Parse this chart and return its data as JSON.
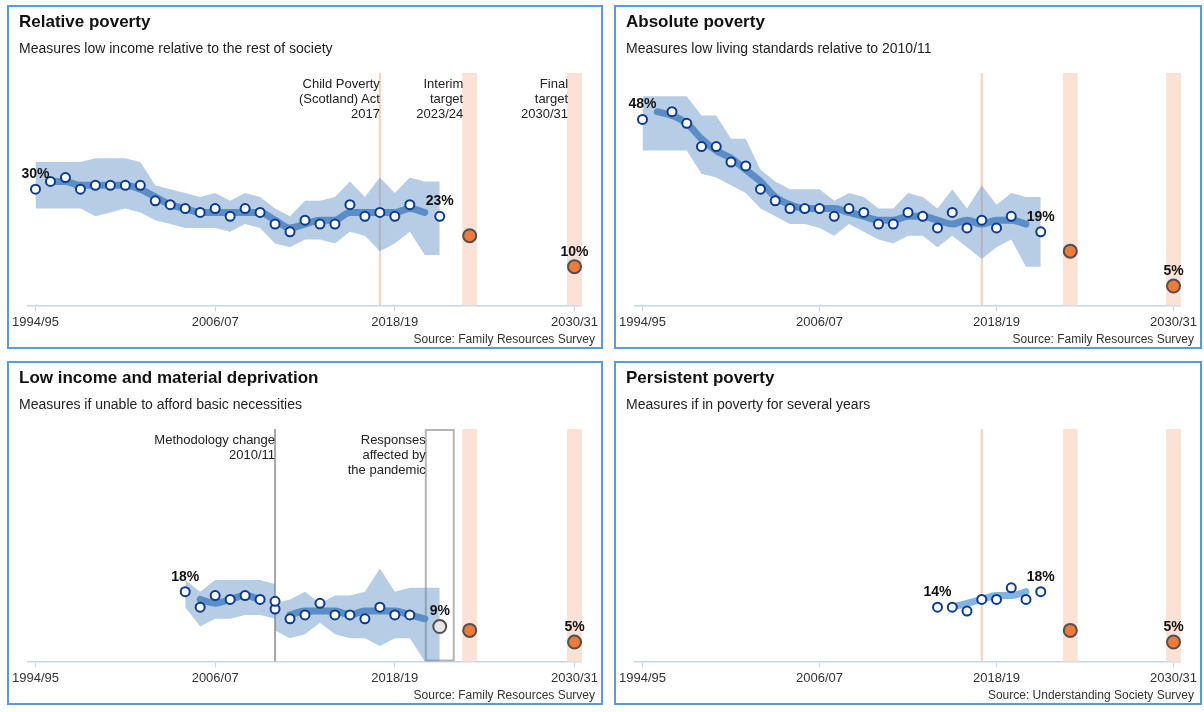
{
  "chart_data": [
    {
      "type": "line",
      "title": "Relative poverty",
      "subtitle": "Measures low income relative to the rest of society",
      "categories": [
        "1994/95",
        null,
        null,
        null,
        null,
        null,
        null,
        null,
        null,
        null,
        null,
        null,
        "2006/07",
        null,
        null,
        null,
        null,
        null,
        null,
        null,
        null,
        null,
        null,
        null,
        "2018/19",
        null,
        null,
        null,
        null,
        null,
        null,
        null,
        null,
        null,
        null,
        null,
        "2030/31"
      ],
      "ylim": [
        0,
        60
      ],
      "tick_labels": "x",
      "annotations": [
        "Child Poverty\n(Scotland) Act\n2017",
        "Interim\ntarget\n2023/24",
        "Final\ntarget\n2030/31",
        "Source: Family Resources Survey"
      ],
      "series": [
        {
          "type": "line",
          "color": "#5b8ec6",
          "values": [
            null,
            32,
            32,
            31,
            31,
            31,
            31,
            30,
            28,
            26,
            25,
            24,
            24,
            24,
            24,
            24,
            22,
            20,
            21,
            22,
            22,
            24,
            24,
            24,
            24,
            25,
            24,
            null,
            null,
            null,
            null,
            null,
            null,
            null,
            null,
            null,
            null
          ],
          "lower": [
            25,
            25,
            25,
            25,
            23,
            24,
            25,
            24,
            22,
            21,
            20,
            20,
            20,
            19,
            21,
            20,
            16,
            15,
            17,
            17,
            16,
            19,
            18,
            14,
            16,
            19,
            13,
            13,
            null,
            null,
            null,
            null,
            null,
            null,
            null,
            null,
            null
          ],
          "upper": [
            37,
            37,
            37,
            37,
            38,
            38,
            38,
            37,
            31,
            30,
            29,
            28,
            29,
            27,
            29,
            28,
            25,
            23,
            27,
            27,
            28,
            32,
            28,
            33,
            29,
            33,
            32,
            32,
            null,
            null,
            null,
            null,
            null,
            null,
            null,
            null,
            null
          ]
        },
        {
          "type": "scatter",
          "color": "#ffffff",
          "marker": "circle",
          "values": [
            30,
            32,
            33,
            30,
            31,
            31,
            31,
            31,
            27,
            26,
            25,
            24,
            25,
            23,
            25,
            24,
            21,
            19,
            22,
            21,
            21,
            26,
            23,
            24,
            23,
            26,
            null,
            23,
            null,
            null,
            null,
            null,
            null,
            null,
            null,
            null,
            null
          ],
          "value_labels": [
            "30%",
            null,
            null,
            null,
            null,
            null,
            null,
            null,
            null,
            null,
            null,
            null,
            null,
            null,
            null,
            null,
            null,
            null,
            null,
            null,
            null,
            null,
            null,
            null,
            null,
            null,
            null,
            "23%",
            null,
            null,
            null,
            null,
            null,
            null,
            null,
            null,
            null
          ]
        },
        {
          "type": "scatter",
          "color": "#f07a3a",
          "marker": "circle",
          "values": [
            null,
            null,
            null,
            null,
            null,
            null,
            null,
            null,
            null,
            null,
            null,
            null,
            null,
            null,
            null,
            null,
            null,
            null,
            null,
            null,
            null,
            null,
            null,
            null,
            null,
            null,
            null,
            null,
            null,
            18,
            null,
            null,
            null,
            null,
            null,
            null,
            10
          ],
          "value_labels": [
            null,
            null,
            null,
            null,
            null,
            null,
            null,
            null,
            null,
            null,
            null,
            null,
            null,
            null,
            null,
            null,
            null,
            null,
            null,
            null,
            null,
            null,
            null,
            null,
            null,
            null,
            null,
            null,
            null,
            null,
            null,
            null,
            null,
            null,
            null,
            null,
            "10%"
          ]
        }
      ]
    },
    {
      "type": "line",
      "title": "Absolute poverty",
      "subtitle": "Measures low living standards relative to 2010/11",
      "categories": [
        "1994/95",
        null,
        null,
        null,
        null,
        null,
        null,
        null,
        null,
        null,
        null,
        null,
        "2006/07",
        null,
        null,
        null,
        null,
        null,
        null,
        null,
        null,
        null,
        null,
        null,
        "2018/19",
        null,
        null,
        null,
        null,
        null,
        null,
        null,
        null,
        null,
        null,
        null,
        "2030/31"
      ],
      "ylim": [
        0,
        60
      ],
      "tick_labels": "x",
      "annotations": [
        "Source: Family Resources Survey"
      ],
      "series": [
        {
          "type": "line",
          "color": "#5b8ec6",
          "values": [
            null,
            50,
            49,
            47,
            43,
            40,
            38,
            35,
            32,
            28,
            26,
            25,
            25,
            25,
            24,
            23,
            22,
            22,
            23,
            23,
            22,
            21,
            22,
            21,
            22,
            22,
            21,
            null,
            null,
            null,
            null,
            null,
            null,
            null,
            null,
            null,
            null
          ],
          "lower": [
            40,
            40,
            40,
            40,
            34,
            33,
            31,
            29,
            25,
            23,
            21,
            21,
            20,
            18,
            21,
            19,
            17,
            16,
            18,
            18,
            15,
            18,
            15,
            12,
            15,
            17,
            10,
            10,
            null,
            null,
            null,
            null,
            null,
            null,
            null,
            null,
            null
          ],
          "upper": [
            54,
            54,
            54,
            54,
            49,
            49,
            43,
            43,
            35,
            32,
            30,
            30,
            30,
            27,
            29,
            28,
            25,
            25,
            29,
            28,
            25,
            30,
            25,
            31,
            26,
            29,
            28,
            28,
            null,
            null,
            null,
            null,
            null,
            null,
            null,
            null,
            null
          ]
        },
        {
          "type": "scatter",
          "color": "#ffffff",
          "marker": "circle",
          "values": [
            48,
            null,
            50,
            47,
            41,
            41,
            37,
            36,
            30,
            27,
            25,
            25,
            25,
            23,
            25,
            24,
            21,
            21,
            24,
            23,
            20,
            24,
            20,
            22,
            20,
            23,
            null,
            19,
            null,
            null,
            null,
            null,
            null,
            null,
            null,
            null,
            null
          ],
          "value_labels": [
            "48%",
            null,
            null,
            null,
            null,
            null,
            null,
            null,
            null,
            null,
            null,
            null,
            null,
            null,
            null,
            null,
            null,
            null,
            null,
            null,
            null,
            null,
            null,
            null,
            null,
            null,
            null,
            "19%",
            null,
            null,
            null,
            null,
            null,
            null,
            null,
            null,
            null
          ]
        },
        {
          "type": "scatter",
          "color": "#f07a3a",
          "marker": "circle",
          "values": [
            null,
            null,
            null,
            null,
            null,
            null,
            null,
            null,
            null,
            null,
            null,
            null,
            null,
            null,
            null,
            null,
            null,
            null,
            null,
            null,
            null,
            null,
            null,
            null,
            null,
            null,
            null,
            null,
            null,
            14,
            null,
            null,
            null,
            null,
            null,
            null,
            5
          ],
          "value_labels": [
            null,
            null,
            null,
            null,
            null,
            null,
            null,
            null,
            null,
            null,
            null,
            null,
            null,
            null,
            null,
            null,
            null,
            null,
            null,
            null,
            null,
            null,
            null,
            null,
            null,
            null,
            null,
            null,
            null,
            null,
            null,
            null,
            null,
            null,
            null,
            null,
            "5%"
          ]
        }
      ]
    },
    {
      "type": "line",
      "title": "Low income and material deprivation",
      "subtitle": "Measures if unable to afford basic necessities",
      "categories": [
        "1994/95",
        null,
        null,
        null,
        null,
        null,
        null,
        null,
        null,
        null,
        null,
        null,
        "2006/07",
        null,
        null,
        null,
        null,
        null,
        null,
        null,
        null,
        null,
        null,
        null,
        "2018/19",
        null,
        null,
        null,
        null,
        null,
        null,
        null,
        null,
        null,
        null,
        null,
        "2030/31"
      ],
      "ylim": [
        0,
        60
      ],
      "tick_labels": "x",
      "annotations": [
        "Methodology change\n2010/11",
        "Responses\naffected by\nthe pandemic",
        "Source: Family Resources Survey"
      ],
      "series": [
        {
          "type": "line",
          "color": "#5b8ec6",
          "values": [
            null,
            null,
            null,
            null,
            null,
            null,
            null,
            null,
            null,
            null,
            null,
            16,
            15,
            16,
            17,
            16,
            null,
            null,
            null,
            null,
            null,
            null,
            null,
            null,
            null,
            null,
            null,
            null,
            null,
            null,
            null,
            null,
            null,
            null,
            null,
            null,
            null
          ],
          "lower": [
            null,
            null,
            null,
            null,
            null,
            null,
            null,
            null,
            null,
            null,
            14,
            9,
            11,
            11,
            12,
            12,
            11,
            null,
            null,
            null,
            null,
            null,
            null,
            null,
            null,
            null,
            null,
            null,
            null,
            null,
            null,
            null,
            null,
            null,
            null,
            null,
            null
          ],
          "upper": [
            null,
            null,
            null,
            null,
            null,
            null,
            null,
            null,
            null,
            null,
            21,
            18,
            21,
            21,
            21,
            21,
            20,
            null,
            null,
            null,
            null,
            null,
            null,
            null,
            null,
            null,
            null,
            null,
            null,
            null,
            null,
            null,
            null,
            null,
            null,
            null,
            null
          ]
        },
        {
          "type": "line",
          "color": "#5b8ec6",
          "values": [
            null,
            null,
            null,
            null,
            null,
            null,
            null,
            null,
            null,
            null,
            null,
            null,
            null,
            null,
            null,
            null,
            null,
            12,
            13,
            13,
            13,
            12,
            13,
            13,
            13,
            12,
            11,
            null,
            null,
            null,
            null,
            null,
            null,
            null,
            null,
            null,
            null
          ],
          "lower": [
            null,
            null,
            null,
            null,
            null,
            null,
            null,
            null,
            null,
            null,
            null,
            null,
            null,
            null,
            null,
            null,
            8,
            6,
            7,
            10,
            7,
            6,
            6,
            4,
            6,
            6,
            0,
            0,
            null,
            null,
            null,
            null,
            null,
            null,
            null,
            null,
            null
          ],
          "upper": [
            null,
            null,
            null,
            null,
            null,
            null,
            null,
            null,
            null,
            null,
            null,
            null,
            null,
            null,
            null,
            null,
            15,
            16,
            18,
            15,
            17,
            17,
            18,
            24,
            18,
            19,
            19,
            19,
            null,
            null,
            null,
            null,
            null,
            null,
            null,
            null,
            null
          ]
        },
        {
          "type": "scatter",
          "color": "#ffffff",
          "marker": "circle",
          "values": [
            null,
            null,
            null,
            null,
            null,
            null,
            null,
            null,
            null,
            null,
            18,
            14,
            17,
            16,
            17,
            16,
            15.5,
            null,
            null,
            null,
            null,
            null,
            null,
            null,
            null,
            null,
            null,
            null,
            null,
            null,
            null,
            null,
            null,
            null,
            null,
            null,
            null
          ],
          "value_labels": [
            null,
            null,
            null,
            null,
            null,
            null,
            null,
            null,
            null,
            null,
            "18%",
            null,
            null,
            null,
            null,
            null,
            null,
            null,
            null,
            null,
            null,
            null,
            null,
            null,
            null,
            null,
            null,
            null,
            null,
            null,
            null,
            null,
            null,
            null,
            null,
            null,
            null
          ]
        },
        {
          "type": "scatter",
          "color": "#ffffff",
          "marker": "circle",
          "values": [
            null,
            null,
            null,
            null,
            null,
            null,
            null,
            null,
            null,
            null,
            null,
            null,
            null,
            null,
            null,
            null,
            13.5,
            11,
            12,
            15,
            12,
            12,
            11,
            14,
            12,
            12,
            null,
            null,
            null,
            null,
            null,
            null,
            null,
            null,
            null,
            null,
            null
          ]
        },
        {
          "type": "scatter",
          "color": "#e6e6e6",
          "marker": "circle",
          "values": [
            null,
            null,
            null,
            null,
            null,
            null,
            null,
            null,
            null,
            null,
            null,
            null,
            null,
            null,
            null,
            null,
            null,
            null,
            null,
            null,
            null,
            null,
            null,
            null,
            null,
            null,
            null,
            9,
            null,
            null,
            null,
            null,
            null,
            null,
            null,
            null,
            null
          ],
          "value_labels": [
            null,
            null,
            null,
            null,
            null,
            null,
            null,
            null,
            null,
            null,
            null,
            null,
            null,
            null,
            null,
            null,
            null,
            null,
            null,
            null,
            null,
            null,
            null,
            null,
            null,
            null,
            null,
            "9%",
            null,
            null,
            null,
            null,
            null,
            null,
            null,
            null,
            null
          ]
        },
        {
          "type": "scatter",
          "color": "#f07a3a",
          "marker": "circle",
          "values": [
            null,
            null,
            null,
            null,
            null,
            null,
            null,
            null,
            null,
            null,
            null,
            null,
            null,
            null,
            null,
            null,
            null,
            null,
            null,
            null,
            null,
            null,
            null,
            null,
            null,
            null,
            null,
            null,
            null,
            8,
            null,
            null,
            null,
            null,
            null,
            null,
            5
          ],
          "value_labels": [
            null,
            null,
            null,
            null,
            null,
            null,
            null,
            null,
            null,
            null,
            null,
            null,
            null,
            null,
            null,
            null,
            null,
            null,
            null,
            null,
            null,
            null,
            null,
            null,
            null,
            null,
            null,
            null,
            null,
            null,
            null,
            null,
            null,
            null,
            null,
            null,
            "5%"
          ]
        }
      ]
    },
    {
      "type": "line",
      "title": "Persistent poverty",
      "subtitle": "Measures if in poverty for several years",
      "categories": [
        "1994/95",
        null,
        null,
        null,
        null,
        null,
        null,
        null,
        null,
        null,
        null,
        null,
        "2006/07",
        null,
        null,
        null,
        null,
        null,
        null,
        null,
        null,
        null,
        null,
        null,
        "2018/19",
        null,
        null,
        null,
        null,
        null,
        null,
        null,
        null,
        null,
        null,
        null,
        "2030/31"
      ],
      "ylim": [
        0,
        60
      ],
      "tick_labels": "x",
      "annotations": [
        "Source: Understanding Society Survey"
      ],
      "series": [
        {
          "type": "line",
          "color": "#82b4e2",
          "values": [
            null,
            null,
            null,
            null,
            null,
            null,
            null,
            null,
            null,
            null,
            null,
            null,
            null,
            null,
            null,
            null,
            null,
            null,
            null,
            null,
            null,
            14,
            15,
            16,
            17,
            17,
            18,
            null,
            null,
            null,
            null,
            null,
            null,
            null,
            null,
            null,
            null
          ]
        },
        {
          "type": "scatter",
          "color": "#ffffff",
          "marker": "circle",
          "values": [
            null,
            null,
            null,
            null,
            null,
            null,
            null,
            null,
            null,
            null,
            null,
            null,
            null,
            null,
            null,
            null,
            null,
            null,
            null,
            null,
            14,
            14,
            13,
            16,
            16,
            19,
            16,
            18,
            null,
            null,
            null,
            null,
            null,
            null,
            null,
            null,
            null
          ],
          "value_labels": [
            null,
            null,
            null,
            null,
            null,
            null,
            null,
            null,
            null,
            null,
            null,
            null,
            null,
            null,
            null,
            null,
            null,
            null,
            null,
            null,
            "14%",
            null,
            null,
            null,
            null,
            null,
            null,
            "18%",
            null,
            null,
            null,
            null,
            null,
            null,
            null,
            null,
            null
          ]
        },
        {
          "type": "scatter",
          "color": "#f07a3a",
          "marker": "circle",
          "values": [
            null,
            null,
            null,
            null,
            null,
            null,
            null,
            null,
            null,
            null,
            null,
            null,
            null,
            null,
            null,
            null,
            null,
            null,
            null,
            null,
            null,
            null,
            null,
            null,
            null,
            null,
            null,
            null,
            null,
            8,
            null,
            null,
            null,
            null,
            null,
            null,
            5
          ],
          "value_labels": [
            null,
            null,
            null,
            null,
            null,
            null,
            null,
            null,
            null,
            null,
            null,
            null,
            null,
            null,
            null,
            null,
            null,
            null,
            null,
            null,
            null,
            null,
            null,
            null,
            null,
            null,
            null,
            null,
            null,
            null,
            null,
            null,
            null,
            null,
            null,
            null,
            "5%"
          ]
        }
      ]
    }
  ]
}
